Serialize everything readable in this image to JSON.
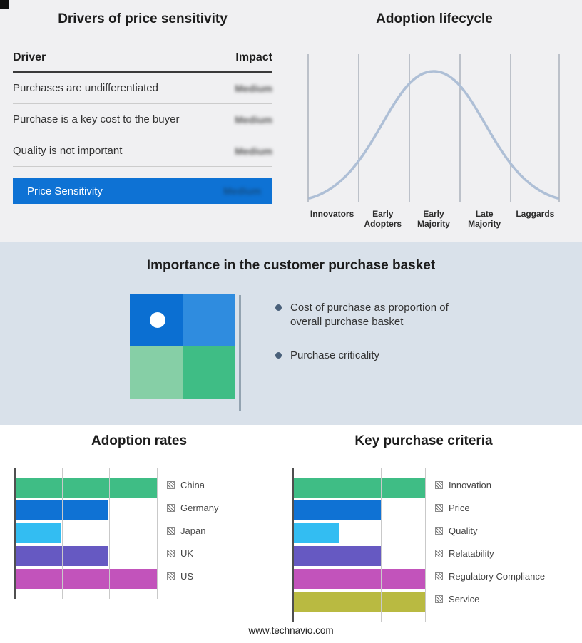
{
  "site": {
    "footer": "www.technavio.com"
  },
  "drivers": {
    "title": "Drivers of price sensitivity",
    "columns": {
      "driver": "Driver",
      "impact": "Impact"
    },
    "rows": [
      {
        "driver": "Purchases are undifferentiated",
        "impact": "Medium"
      },
      {
        "driver": "Purchase is a key cost to the buyer",
        "impact": "Medium"
      },
      {
        "driver": "Quality is not important",
        "impact": "Medium"
      }
    ],
    "highlight_row": {
      "driver": "Price Sensitivity",
      "impact": "Medium"
    },
    "highlight_color": "#0e72d4"
  },
  "basket": {
    "title": "Importance in the customer purchase basket",
    "bullets": [
      "Cost of purchase as proportion of overall purchase basket",
      "Purchase criticality"
    ],
    "quadrants": {
      "top_left": "#0b6fd2",
      "top_right": "#2f8cdf",
      "bottom_left": "#86cfa6",
      "bottom_right": "#3fbd85"
    }
  },
  "chart_data": [
    {
      "type": "bar",
      "orientation": "horizontal",
      "title": "Adoption rates",
      "categories": [
        "China",
        "Germany",
        "Japan",
        "UK",
        "US"
      ],
      "values": [
        100,
        66,
        33,
        66,
        100
      ],
      "colors": [
        "#3fbd85",
        "#0f72d4",
        "#33bdf2",
        "#6659c2",
        "#c253bb"
      ],
      "xlim": [
        0,
        100
      ],
      "value_unit": "relative-%",
      "grid": true,
      "legend_position": "right"
    },
    {
      "type": "bar",
      "orientation": "horizontal",
      "title": "Key purchase criteria",
      "categories": [
        "Innovation",
        "Price",
        "Quality",
        "Relatability",
        "Regulatory Compliance",
        "Service"
      ],
      "values": [
        100,
        67,
        35,
        67,
        100,
        100
      ],
      "colors": [
        "#3fbd85",
        "#0f72d4",
        "#33bdf2",
        "#6659c2",
        "#c253bb",
        "#b9ba41"
      ],
      "xlim": [
        0,
        100
      ],
      "value_unit": "relative-%",
      "grid": true,
      "legend_position": "right"
    },
    {
      "type": "line",
      "title": "Adoption lifecycle",
      "categories": [
        "Innovators",
        "Early Adopters",
        "Early Majority",
        "Late Majority",
        "Laggards"
      ],
      "values": [
        10,
        60,
        100,
        60,
        10
      ],
      "shape": "bell-curve",
      "color": "#aebfd6",
      "grid": true
    }
  ]
}
